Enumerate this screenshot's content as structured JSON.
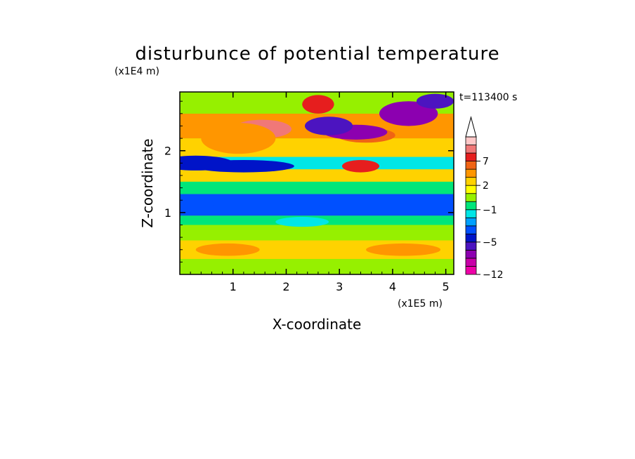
{
  "chart_data": {
    "type": "heatmap",
    "title": "disturbunce of potential temperature",
    "y_unit_label": "(x1E4 m)",
    "x_unit_label": "(x1E5 m)",
    "xlabel": "X-coordinate",
    "ylabel": "Z-coordinate",
    "time_label": "t=113400 s",
    "xlim": [
      0,
      5.15
    ],
    "ylim": [
      0,
      2.95
    ],
    "x_ticks": [
      "1",
      "2",
      "3",
      "4",
      "5"
    ],
    "y_ticks": [
      "1",
      "2"
    ],
    "colorbar": {
      "levels": [
        -12,
        -10,
        -8,
        -6,
        -5,
        -4,
        -3,
        -2,
        -1,
        0,
        1,
        2,
        3,
        5,
        7,
        9,
        11
      ],
      "tick_labels": [
        "7",
        "2",
        "-1",
        "-5",
        "-12"
      ],
      "tick_values": [
        7,
        2,
        -1,
        -5,
        -12
      ],
      "colors": [
        "#ee00a8",
        "#c800a8",
        "#8c00b0",
        "#4c14c0",
        "#0014c8",
        "#0050ff",
        "#00a0ff",
        "#00e6e6",
        "#00e67a",
        "#96f000",
        "#ffff00",
        "#ffd200",
        "#ff9600",
        "#f06414",
        "#e61e1e",
        "#f07878",
        "#ffc8c8"
      ],
      "extend": "max"
    },
    "features": [
      {
        "x": 1.55,
        "z": 2.35,
        "value": 9
      },
      {
        "x": 1.1,
        "z": 2.2,
        "value": 4
      },
      {
        "x": 2.6,
        "z": 2.75,
        "value": 7
      },
      {
        "x": 3.4,
        "z": 1.75,
        "value": 7
      },
      {
        "x": 3.5,
        "z": 2.25,
        "value": 6
      },
      {
        "x": 3.3,
        "z": 2.3,
        "value": -8
      },
      {
        "x": 2.8,
        "z": 2.4,
        "value": -6
      },
      {
        "x": 4.3,
        "z": 2.6,
        "value": -7
      },
      {
        "x": 4.8,
        "z": 2.8,
        "value": -6
      },
      {
        "x": 1.2,
        "z": 1.75,
        "value": -5
      },
      {
        "x": 0.3,
        "z": 1.8,
        "value": -5
      },
      {
        "x": 1.2,
        "z": 1.15,
        "value": -4
      },
      {
        "x": 3.5,
        "z": 1.1,
        "value": -4
      },
      {
        "x": 2.3,
        "z": 0.85,
        "value": -2
      },
      {
        "x": 2.0,
        "z": 0.45,
        "value": 2
      },
      {
        "x": 4.2,
        "z": 0.4,
        "value": 3
      },
      {
        "x": 0.9,
        "z": 0.4,
        "value": 3
      },
      {
        "x": 3.0,
        "z": 0.1,
        "value": 0.5
      }
    ]
  }
}
